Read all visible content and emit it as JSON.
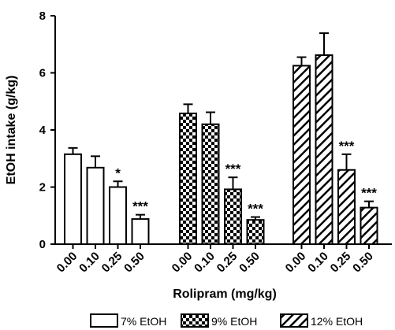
{
  "chart_data": {
    "type": "bar",
    "title": "",
    "xlabel": "Rolipram (mg/kg)",
    "ylabel": "EtOH intake (g/kg)",
    "ylim": [
      0,
      8
    ],
    "yticks": [
      0,
      2,
      4,
      6,
      8
    ],
    "grid": false,
    "legend_position": "bottom",
    "categories": [
      "0.00",
      "0.10",
      "0.25",
      "0.50"
    ],
    "series": [
      {
        "name": "7% EtOH",
        "pattern": "open",
        "values": [
          3.15,
          2.68,
          2.0,
          0.88
        ],
        "errors": [
          0.22,
          0.4,
          0.2,
          0.15
        ],
        "significance": [
          "",
          "",
          "*",
          "***"
        ]
      },
      {
        "name": "9% EtOH",
        "pattern": "checkered",
        "values": [
          4.58,
          4.2,
          1.92,
          0.85
        ],
        "errors": [
          0.32,
          0.42,
          0.42,
          0.1
        ],
        "significance": [
          "",
          "",
          "***",
          "***"
        ]
      },
      {
        "name": "12% EtOH",
        "pattern": "hatched",
        "values": [
          6.25,
          6.62,
          2.6,
          1.28
        ],
        "errors": [
          0.3,
          0.77,
          0.55,
          0.22
        ],
        "significance": [
          "",
          "",
          "***",
          "***"
        ]
      }
    ]
  }
}
